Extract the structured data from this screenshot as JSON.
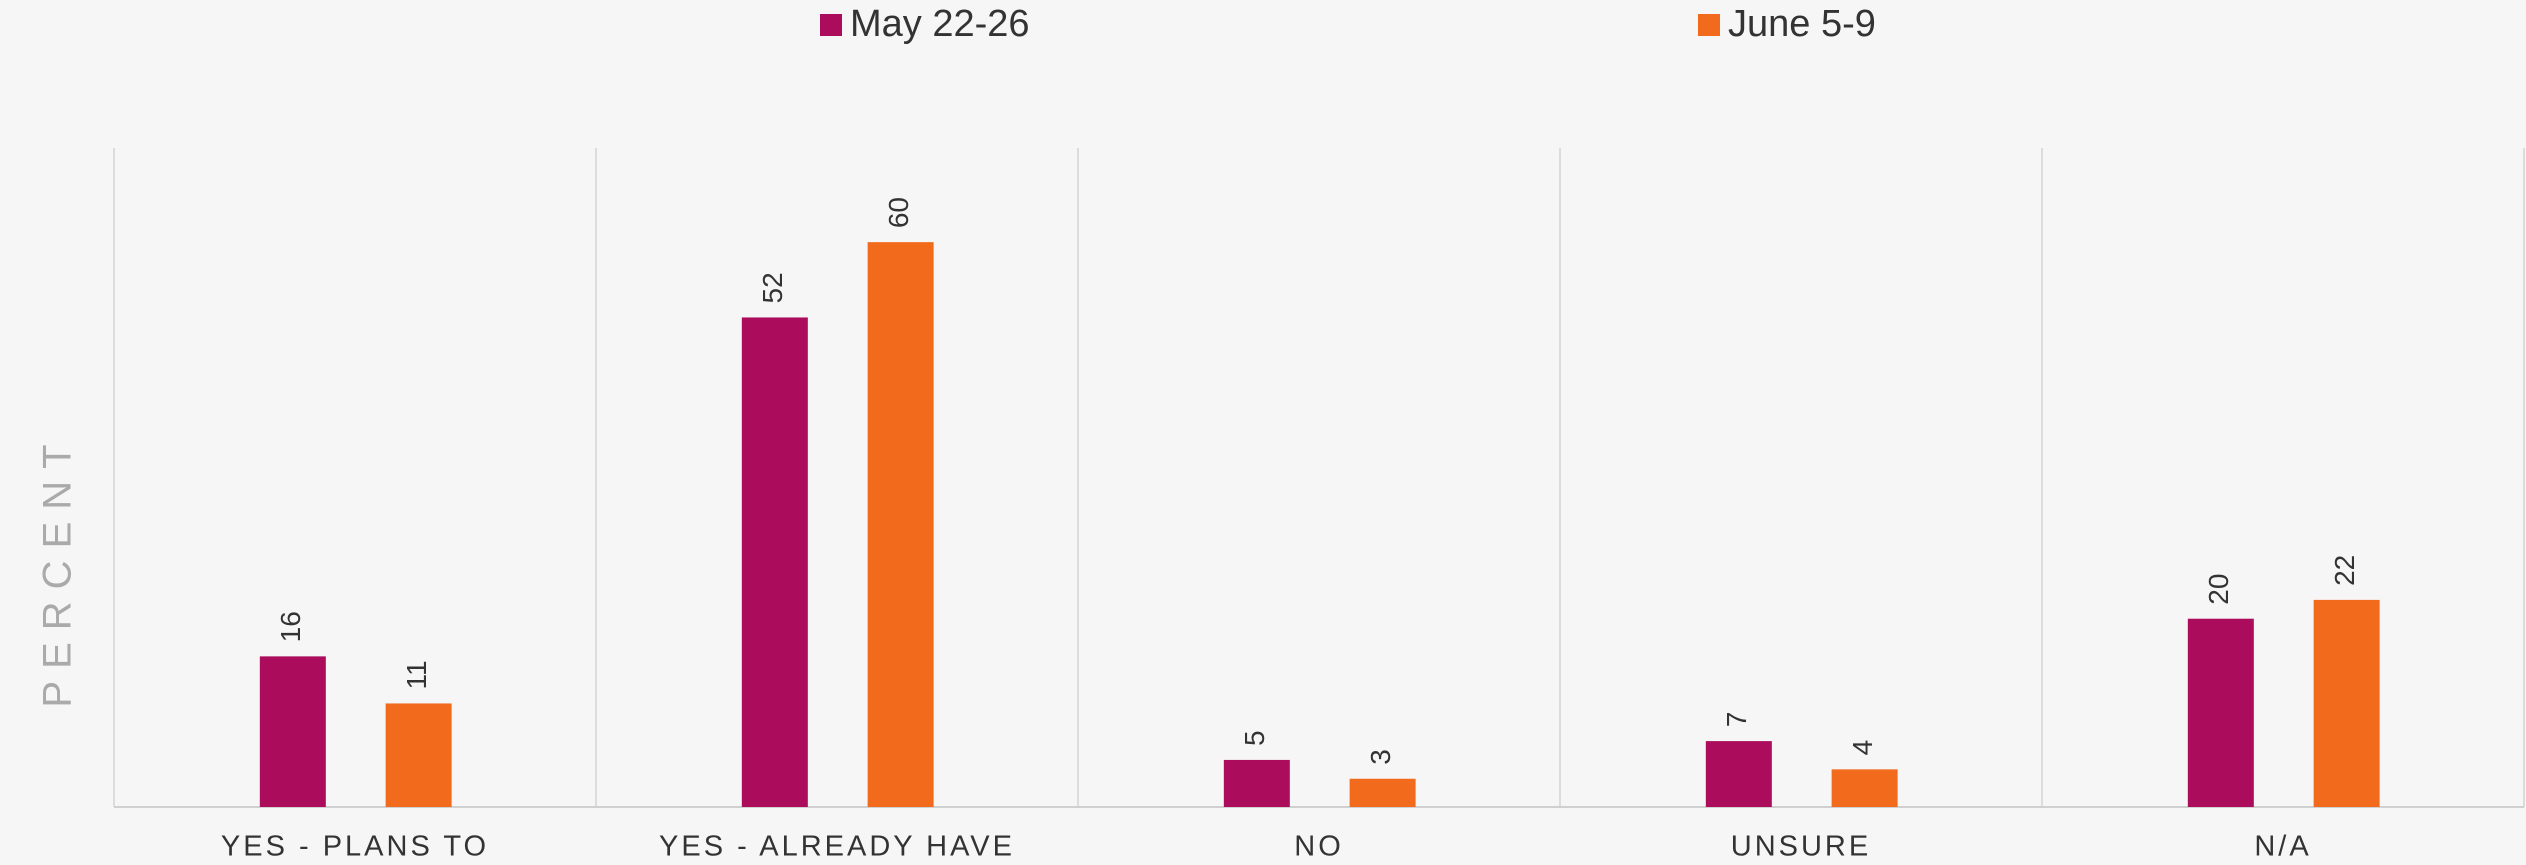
{
  "chart_data": {
    "type": "bar",
    "y_label": "PERCENT",
    "categories": [
      "YES - PLANS TO",
      "YES - ALREADY HAVE",
      "NO",
      "UNSURE",
      "N/A"
    ],
    "series": [
      {
        "name": "May 22-26",
        "color": "#ab0d5c",
        "values": [
          16,
          52,
          5,
          7,
          20
        ]
      },
      {
        "name": "June 5-9",
        "color": "#f26b1d",
        "values": [
          11,
          60,
          3,
          4,
          22
        ]
      }
    ],
    "ylim": [
      0,
      70
    ],
    "grid": true
  }
}
